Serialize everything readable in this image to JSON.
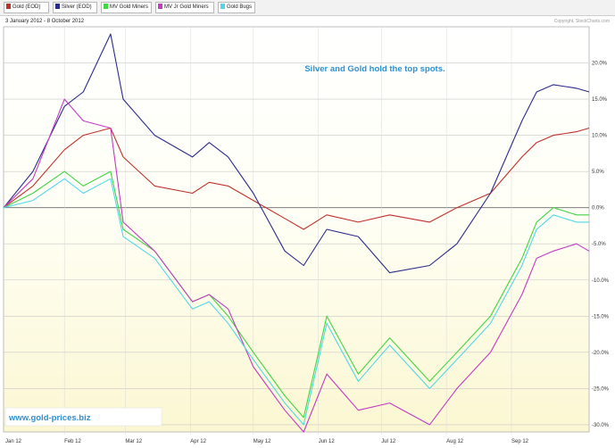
{
  "legend": [
    {
      "label": "Gold (EOD)",
      "color": "#c0302a"
    },
    {
      "label": "Silver (EOD)",
      "color": "#2b2b8c"
    },
    {
      "label": "MV Gold Miners",
      "color": "#44d444"
    },
    {
      "label": "MV Jr Gold Miners",
      "color": "#c23bc2"
    },
    {
      "label": "Gold Bugs",
      "color": "#50d8e8"
    }
  ],
  "date_range": "3 January 2012 - 8 October 2012",
  "copyright": "Copyright, StockCharts.com",
  "annotation": "Silver and Gold hold the top spots.",
  "watermark": "www.gold-prices.biz",
  "chart_data": {
    "type": "line",
    "ylim": [
      -31,
      25
    ],
    "ytick_values": [
      20,
      15,
      10,
      5,
      0,
      -5,
      -10,
      -15,
      -20,
      -25,
      -30
    ],
    "ytick_labels": [
      "20.0%",
      "15.0%",
      "10.0%",
      "5.0%",
      "0.0%",
      "-5.0%",
      "-10.0%",
      "-15.0%",
      "-20.0%",
      "-25.0%",
      "-30.0%"
    ],
    "xlabels": [
      "Jan 12",
      "Feb 12",
      "Mar 12",
      "Apr 12",
      "May 12",
      "Jun 12",
      "Jul 12",
      "Aug 12",
      "Sep 12"
    ],
    "xlabel_dates": [
      "2012-01-01",
      "2012-02-01",
      "2012-03-01",
      "2012-04-01",
      "2012-05-01",
      "2012-06-01",
      "2012-07-01",
      "2012-08-01",
      "2012-09-01"
    ],
    "dates": [
      "2012-01-03",
      "2012-01-17",
      "2012-02-01",
      "2012-02-10",
      "2012-02-23",
      "2012-02-29",
      "2012-03-15",
      "2012-04-02",
      "2012-04-10",
      "2012-04-19",
      "2012-05-01",
      "2012-05-16",
      "2012-05-25",
      "2012-06-05",
      "2012-06-20",
      "2012-07-05",
      "2012-07-24",
      "2012-08-06",
      "2012-08-22",
      "2012-09-06",
      "2012-09-13",
      "2012-09-21",
      "2012-10-02",
      "2012-10-08"
    ],
    "series": [
      {
        "name": "Gold (EOD)",
        "color": "#c0302a",
        "values": [
          0,
          3,
          8,
          10,
          11,
          7,
          3,
          2,
          3.5,
          3,
          1,
          -1.5,
          -3,
          -1,
          -2,
          -1,
          -2,
          0,
          2,
          7,
          9,
          10,
          10.5,
          11
        ]
      },
      {
        "name": "Silver (EOD)",
        "color": "#2b2b8c",
        "values": [
          0,
          5,
          14,
          16,
          24,
          15,
          10,
          7,
          9,
          7,
          2,
          -6,
          -8,
          -3,
          -4,
          -9,
          -8,
          -5,
          2,
          12,
          16,
          17,
          16.5,
          16
        ]
      },
      {
        "name": "MV Gold Miners",
        "color": "#44d444",
        "values": [
          0,
          2,
          5,
          3,
          5,
          -3,
          -6,
          -13,
          -12,
          -15,
          -20,
          -26,
          -29,
          -15,
          -23,
          -18,
          -24,
          -20,
          -15,
          -7,
          -2,
          0,
          -1,
          -1
        ]
      },
      {
        "name": "MV Jr Gold Miners",
        "color": "#c23bc2",
        "values": [
          0,
          4,
          15,
          12,
          11,
          -2,
          -6,
          -13,
          -12,
          -14,
          -22,
          -28,
          -31,
          -23,
          -28,
          -27,
          -30,
          -25,
          -20,
          -12,
          -7,
          -6,
          -5,
          -6
        ]
      },
      {
        "name": "Gold Bugs",
        "color": "#50d8e8",
        "values": [
          0,
          1,
          4,
          2,
          4,
          -4,
          -7,
          -14,
          -13,
          -16,
          -21,
          -27,
          -30,
          -16,
          -24,
          -19,
          -25,
          -21,
          -16,
          -8,
          -3,
          -1,
          -2,
          -2
        ]
      }
    ]
  }
}
